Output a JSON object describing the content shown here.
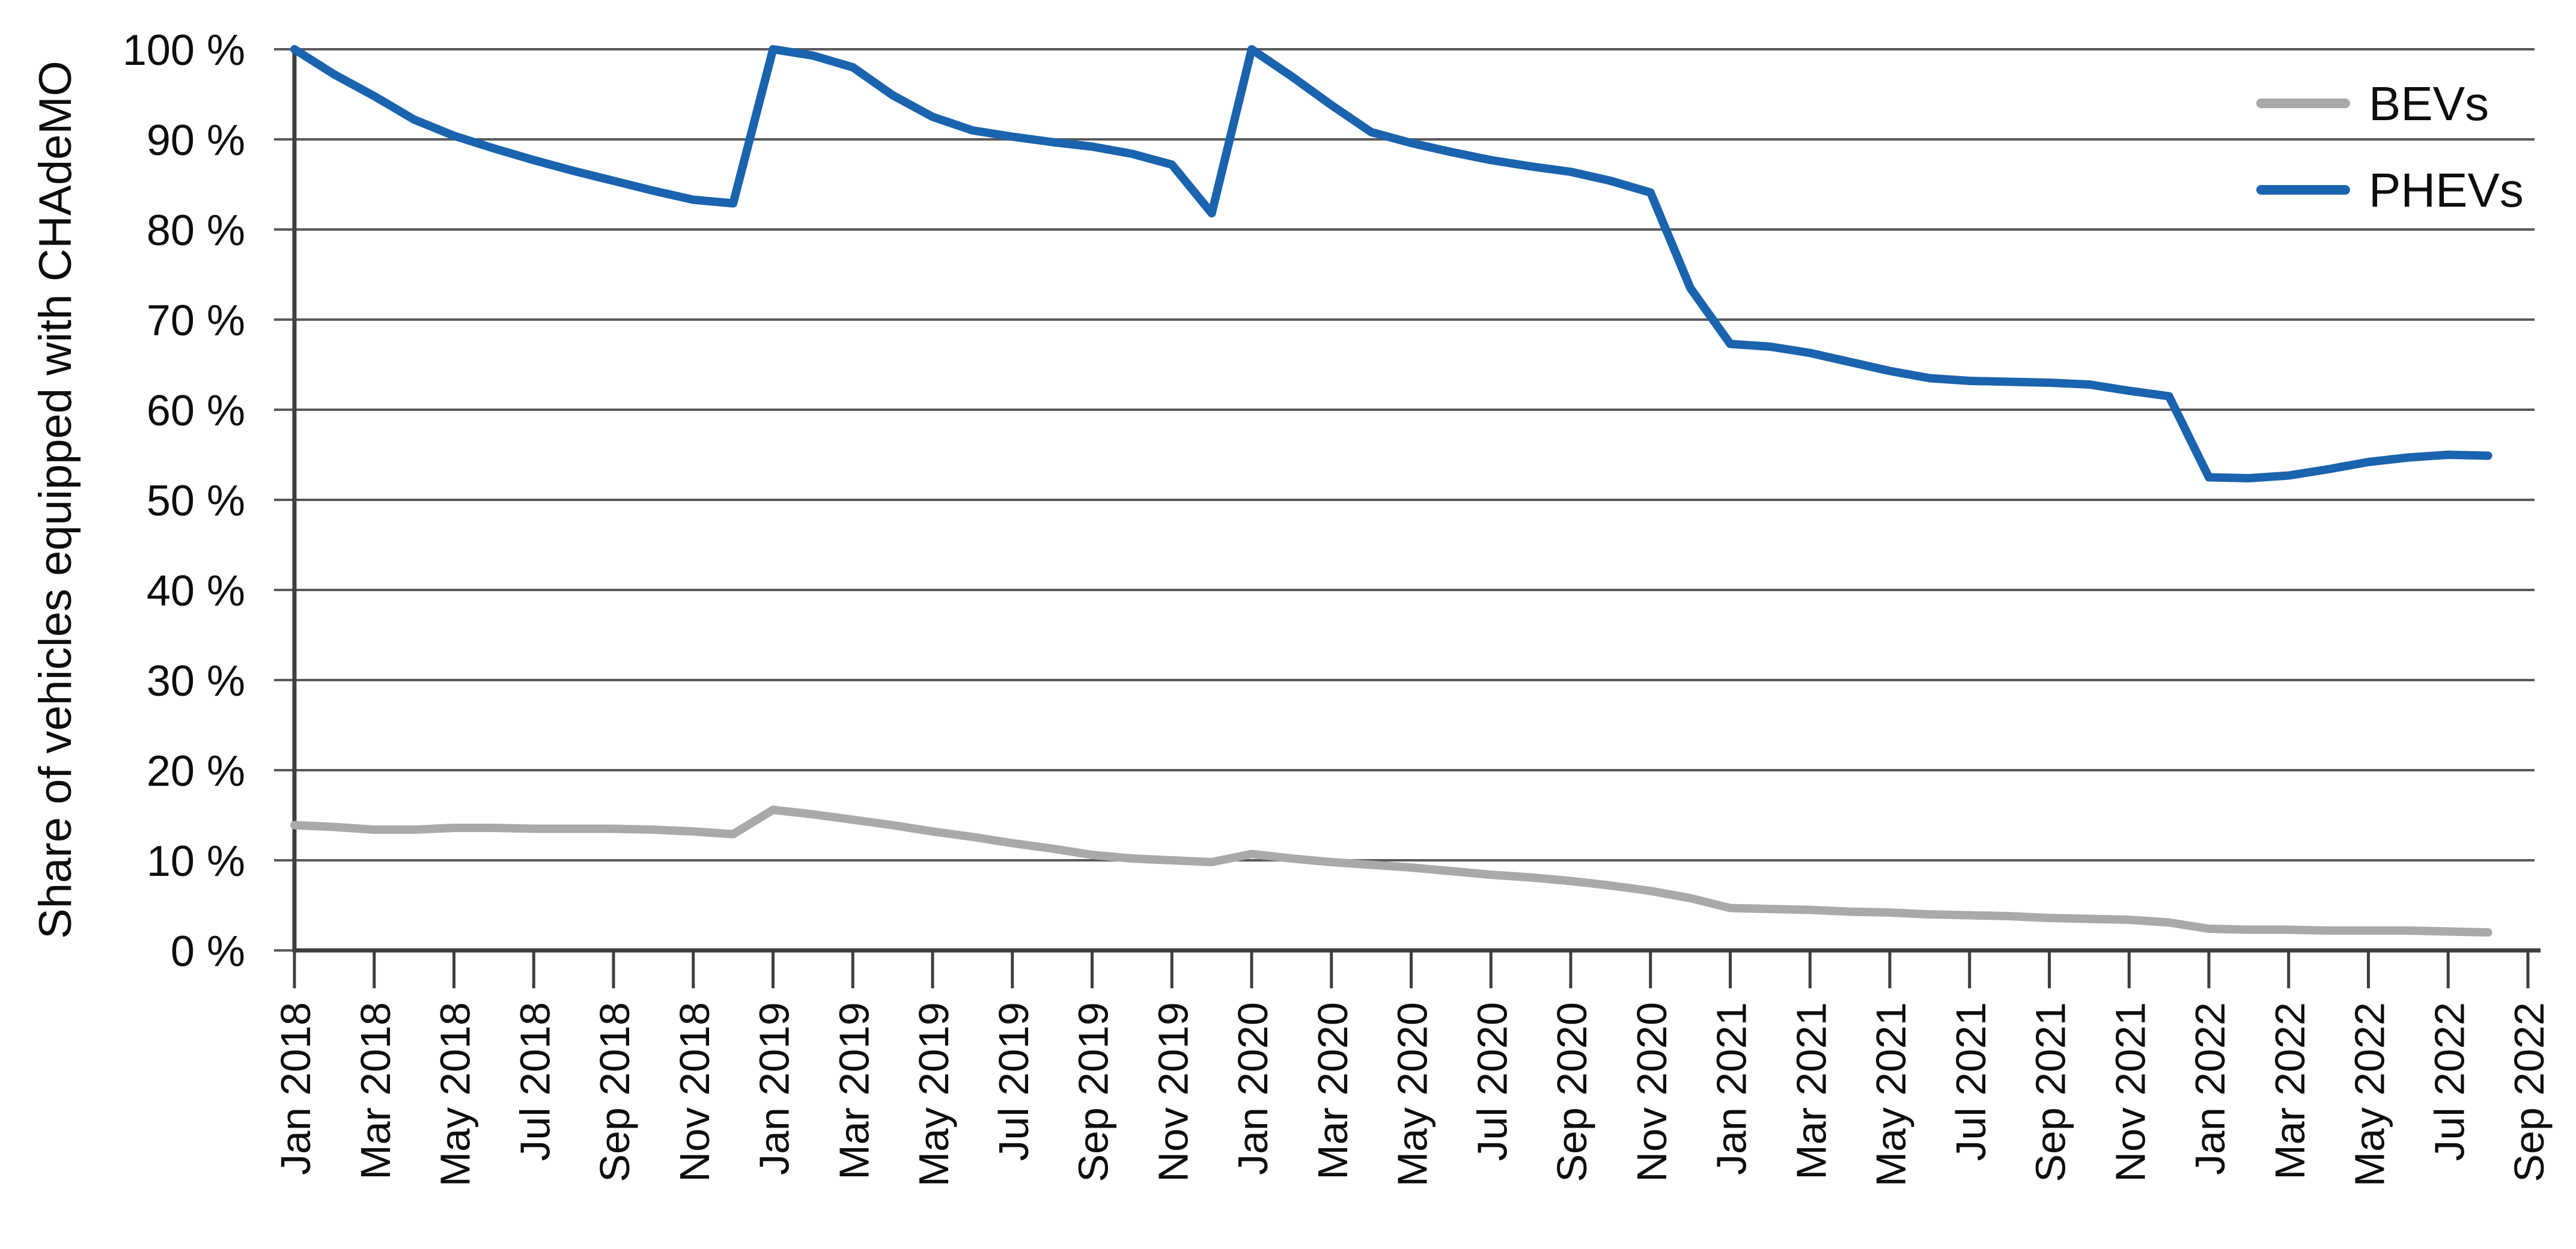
{
  "chart_data": {
    "type": "line",
    "title": "",
    "xlabel": "",
    "ylabel": "Share of vehicles equipped with CHAdeMO",
    "ylim": [
      0,
      100
    ],
    "grid": "horizontal",
    "legend_position": "top-right",
    "ytick_labels": [
      "0 %",
      "10 %",
      "20 %",
      "30 %",
      "40 %",
      "50 %",
      "60 %",
      "70 %",
      "80 %",
      "90 %",
      "100 %"
    ],
    "xtick_labels": [
      "Jan 2018",
      "Mar 2018",
      "May 2018",
      "Jul 2018",
      "Sep 2018",
      "Nov 2018",
      "Jan 2019",
      "Mar 2019",
      "May 2019",
      "Jul 2019",
      "Sep 2019",
      "Nov 2019",
      "Jan 2020",
      "Mar 2020",
      "May 2020",
      "Jul 2020",
      "Sep 2020",
      "Nov 2020",
      "Jan 2021",
      "Mar 2021",
      "May 2021",
      "Jul 2021",
      "Sep 2021",
      "Nov 2021",
      "Jan 2022",
      "Mar 2022",
      "May 2022",
      "Jul 2022",
      "Sep 2022"
    ],
    "x": [
      "Jan 2018",
      "Feb 2018",
      "Mar 2018",
      "Apr 2018",
      "May 2018",
      "Jun 2018",
      "Jul 2018",
      "Aug 2018",
      "Sep 2018",
      "Oct 2018",
      "Nov 2018",
      "Dec 2018",
      "Jan 2019",
      "Feb 2019",
      "Mar 2019",
      "Apr 2019",
      "May 2019",
      "Jun 2019",
      "Jul 2019",
      "Aug 2019",
      "Sep 2019",
      "Oct 2019",
      "Nov 2019",
      "Dec 2019",
      "Jan 2020",
      "Feb 2020",
      "Mar 2020",
      "Apr 2020",
      "May 2020",
      "Jun 2020",
      "Jul 2020",
      "Aug 2020",
      "Sep 2020",
      "Oct 2020",
      "Nov 2020",
      "Dec 2020",
      "Jan 2021",
      "Feb 2021",
      "Mar 2021",
      "Apr 2021",
      "May 2021",
      "Jun 2021",
      "Jul 2021",
      "Aug 2021",
      "Sep 2021",
      "Oct 2021",
      "Nov 2021",
      "Dec 2021",
      "Jan 2022",
      "Feb 2022",
      "Mar 2022",
      "Apr 2022",
      "May 2022",
      "Jun 2022",
      "Jul 2022",
      "Aug 2022"
    ],
    "series": [
      {
        "name": "BEVs",
        "color": "#A9A9A9",
        "values": [
          13.9,
          13.7,
          13.4,
          13.4,
          13.6,
          13.6,
          13.5,
          13.5,
          13.5,
          13.4,
          13.2,
          12.9,
          15.6,
          15.1,
          14.5,
          13.9,
          13.2,
          12.6,
          11.9,
          11.3,
          10.6,
          10.2,
          10.0,
          9.8,
          10.7,
          10.2,
          9.8,
          9.5,
          9.2,
          8.8,
          8.4,
          8.1,
          7.7,
          7.2,
          6.6,
          5.8,
          4.7,
          4.6,
          4.5,
          4.3,
          4.2,
          4.0,
          3.9,
          3.8,
          3.6,
          3.5,
          3.4,
          3.1,
          2.4,
          2.3,
          2.3,
          2.2,
          2.2,
          2.2,
          2.1,
          2.0
        ]
      },
      {
        "name": "PHEVs",
        "color": "#1A63AE",
        "values": [
          100,
          97.2,
          94.8,
          92.2,
          90.4,
          89.0,
          87.7,
          86.5,
          85.4,
          84.3,
          83.3,
          82.9,
          100,
          99.3,
          98.0,
          94.9,
          92.5,
          91.0,
          90.3,
          89.7,
          89.2,
          88.4,
          87.2,
          81.8,
          100,
          97.0,
          93.8,
          90.8,
          89.6,
          88.6,
          87.7,
          87.0,
          86.4,
          85.4,
          84.1,
          73.5,
          67.3,
          67.0,
          66.3,
          65.3,
          64.3,
          63.5,
          63.2,
          63.1,
          63.0,
          62.8,
          62.1,
          61.5,
          52.5,
          52.4,
          52.7,
          53.4,
          54.2,
          54.7,
          55.0,
          54.9
        ]
      }
    ]
  }
}
